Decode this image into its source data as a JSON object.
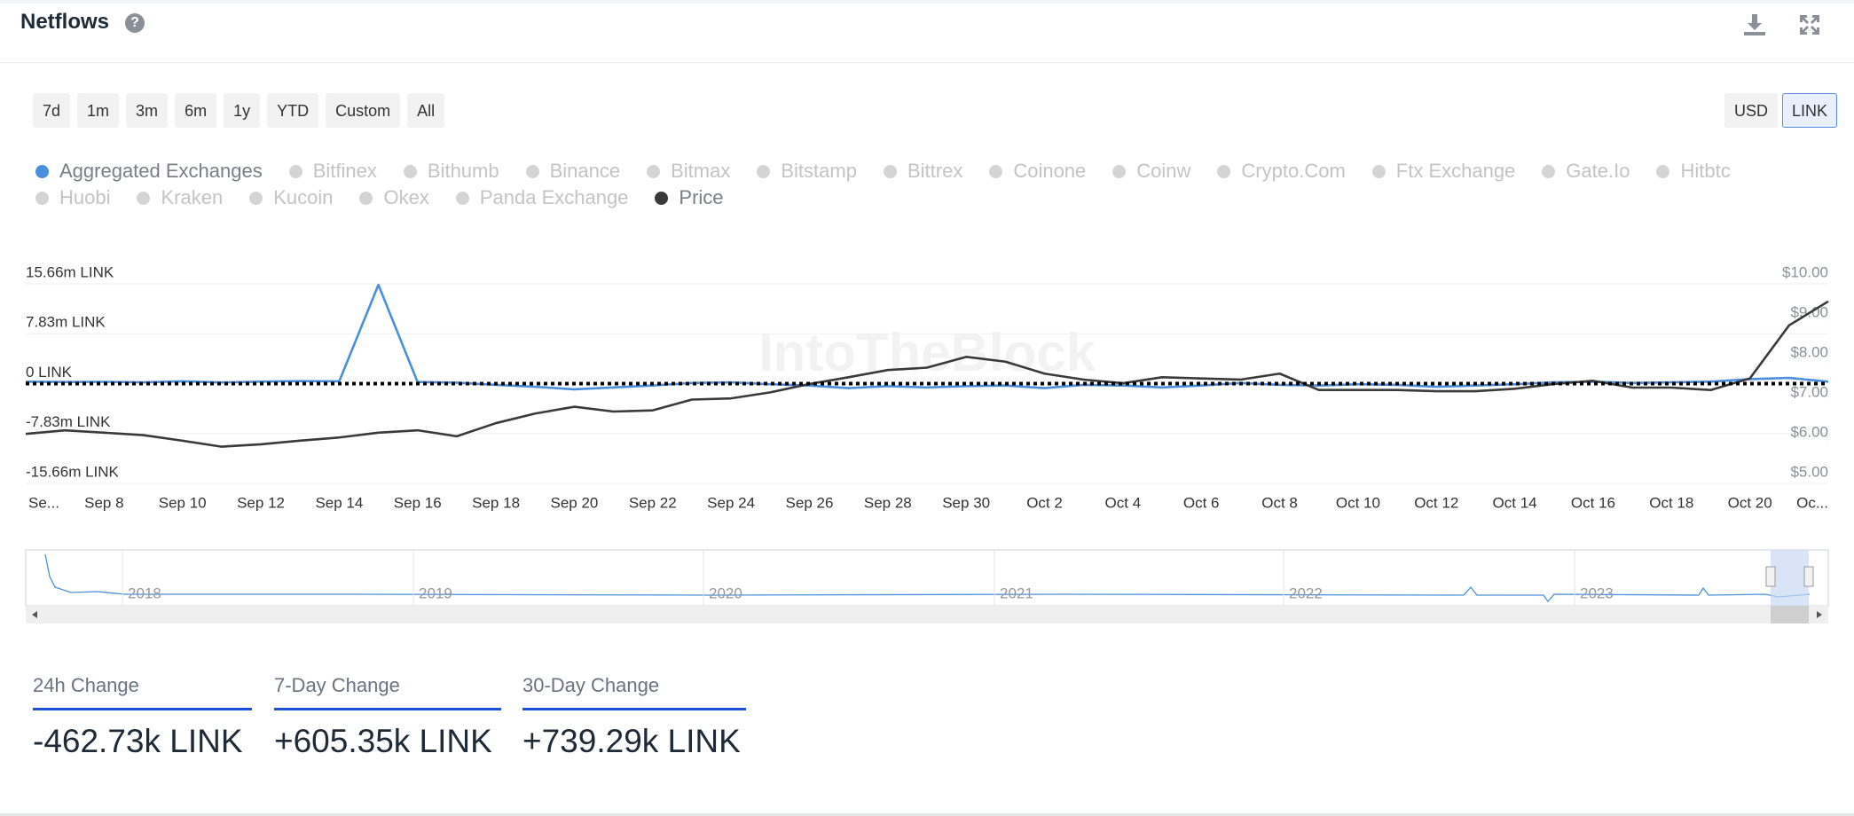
{
  "header": {
    "title": "Netflows"
  },
  "range_buttons": [
    "7d",
    "1m",
    "3m",
    "6m",
    "1y",
    "YTD",
    "Custom",
    "All"
  ],
  "unit_buttons": [
    {
      "label": "USD",
      "active": false
    },
    {
      "label": "LINK",
      "active": true
    }
  ],
  "chart_data": {
    "type": "line",
    "watermark": "IntoTheBlock",
    "categories": [
      "Se...",
      null,
      "Sep 8",
      null,
      "Sep 10",
      null,
      "Sep 12",
      null,
      "Sep 14",
      null,
      "Sep 16",
      null,
      "Sep 18",
      null,
      "Sep 20",
      null,
      "Sep 22",
      null,
      "Sep 24",
      null,
      "Sep 26",
      null,
      "Sep 28",
      null,
      "Sep 30",
      null,
      "Oct 2",
      null,
      "Oct 4",
      null,
      "Oct 6",
      null,
      "Oct 8",
      null,
      "Oct 10",
      null,
      "Oct 12",
      null,
      "Oct 14",
      null,
      "Oct 16",
      null,
      "Oct 18",
      null,
      "Oct 20",
      null,
      "Oc..."
    ],
    "series": [
      {
        "name": "Aggregated Exchanges",
        "color": "#4a8fdb",
        "axis": "y",
        "values": [
          300000,
          250000,
          280000,
          200000,
          350000,
          180000,
          300000,
          400000,
          350000,
          15500000,
          250000,
          150000,
          -200000,
          -500000,
          -900000,
          -600000,
          -300000,
          100000,
          200000,
          -100000,
          -300000,
          -700000,
          -400000,
          -600000,
          -400000,
          -300000,
          -700000,
          -200000,
          -300000,
          -600000,
          -300000,
          100000,
          -200000,
          -300000,
          -100000,
          -200000,
          -500000,
          -300000,
          -100000,
          200000,
          300000,
          100000,
          200000,
          300000,
          700000,
          900000,
          300000
        ]
      },
      {
        "name": "Price",
        "color": "#3a3a3a",
        "axis": "y2",
        "values": [
          6.24,
          6.33,
          6.27,
          6.21,
          6.07,
          5.92,
          5.98,
          6.07,
          6.15,
          6.27,
          6.33,
          6.18,
          6.51,
          6.75,
          6.92,
          6.8,
          6.83,
          7.1,
          7.13,
          7.28,
          7.49,
          7.66,
          7.84,
          7.9,
          8.17,
          8.05,
          7.75,
          7.6,
          7.51,
          7.66,
          7.63,
          7.6,
          7.75,
          7.34,
          7.34,
          7.34,
          7.31,
          7.31,
          7.37,
          7.49,
          7.57,
          7.4,
          7.4,
          7.34,
          7.63,
          8.96,
          9.56
        ]
      }
    ],
    "hidden_series": [
      "Bitfinex",
      "Bithumb",
      "Binance",
      "Bitmax",
      "Bitstamp",
      "Bittrex",
      "Coinone",
      "Coinw",
      "Crypto.Com",
      "Ftx Exchange",
      "Gate.Io",
      "Hitbtc",
      "Huobi",
      "Kraken",
      "Kucoin",
      "Okex",
      "Panda Exchange"
    ],
    "hidden_color": "#d4d4d4",
    "ylim": [
      -15660000,
      15660000
    ],
    "yticks": [
      {
        "value": -15660000,
        "label": "-15.66m LINK"
      },
      {
        "value": -7830000,
        "label": "-7.83m LINK"
      },
      {
        "value": 0,
        "label": "0 LINK"
      },
      {
        "value": 7830000,
        "label": "7.83m LINK"
      },
      {
        "value": 15660000,
        "label": "15.66m LINK"
      }
    ],
    "y2lim": [
      5,
      10
    ],
    "y2ticks": [
      {
        "value": 5,
        "label": "$5.00"
      },
      {
        "value": 6,
        "label": "$6.00"
      },
      {
        "value": 7,
        "label": "$7.00"
      },
      {
        "value": 8,
        "label": "$8.00"
      },
      {
        "value": 9,
        "label": "$9.00"
      },
      {
        "value": 10,
        "label": "$10.00"
      }
    ],
    "grid": true
  },
  "navigator": {
    "labels": [
      "2018",
      "2019",
      "2020",
      "2021",
      "2022",
      "2023"
    ]
  },
  "stats": [
    {
      "label": "24h Change",
      "value": "-462.73k LINK"
    },
    {
      "label": "7-Day Change",
      "value": "+605.35k LINK"
    },
    {
      "label": "30-Day Change",
      "value": "+739.29k LINK"
    }
  ]
}
